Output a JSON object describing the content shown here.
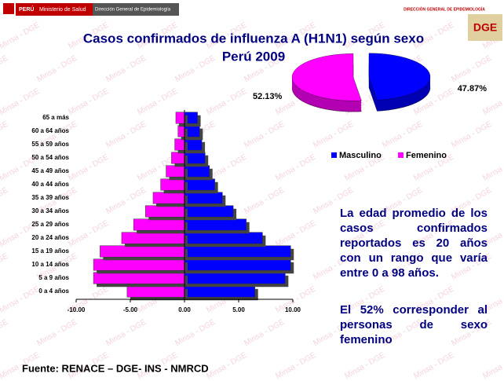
{
  "header": {
    "country": "PERÚ",
    "ministry": "Ministerio de Salud",
    "direction": "Dirección General de Epidemiología",
    "right_org": "DIRECCIÓN GENERAL DE EPIDEMIOLOGÍA",
    "right_logo": "DGE",
    "watermark": "Minsa - DGE"
  },
  "title": [
    "Casos confirmados de influenza A (H1N1) según sexo",
    "Perú 2009"
  ],
  "chart_data": [
    {
      "type": "pyramid",
      "categories": [
        "0 a 4 años",
        "5 a 9 años",
        "10 a 14 años",
        "15 a 19 años",
        "20 a 24 años",
        "25 a 29 años",
        "30 a 34 años",
        "35 a 39 años",
        "40 a 44 años",
        "45 a 49 años",
        "50 a 54 años",
        "55 a 59 años",
        "60 a 64 años",
        "65 a más"
      ],
      "series": [
        {
          "color": "#0000ff",
          "values": [
            6.5,
            9.3,
            9.8,
            9.8,
            7.2,
            5.7,
            4.5,
            3.5,
            2.8,
            2.3,
            1.9,
            1.6,
            1.4,
            1.2
          ]
        },
        {
          "color": "#ff00ff",
          "values": [
            -5.3,
            -8.4,
            -8.4,
            -7.8,
            -5.8,
            -4.7,
            -3.6,
            -2.9,
            -2.2,
            -1.7,
            -1.2,
            -0.9,
            -0.6,
            -0.8
          ]
        }
      ],
      "xlim": [
        -10,
        10
      ],
      "xticks": [
        {
          "value": -10,
          "label": "-10.00"
        },
        {
          "value": -5,
          "label": "-5.00"
        },
        {
          "value": 0,
          "label": "0.00"
        },
        {
          "value": 5,
          "label": "5.00"
        },
        {
          "value": 10,
          "label": "10.00"
        }
      ]
    },
    {
      "type": "pie",
      "categories": [
        "Masculino",
        "Femenino"
      ],
      "values": [
        47.87,
        52.13
      ],
      "value_labels": [
        "47.87%",
        "52.13%"
      ],
      "colors": [
        "#0000ff",
        "#ff00ff"
      ],
      "legend": "bottom"
    }
  ],
  "notes": [
    "La edad promedio de los casos confirmados reportados es 20 años con un rango que varía entre 0 a 98 años.",
    "El 52% corresponder al personas de sexo femenino"
  ],
  "source": "Fuente: RENACE – DGE- INS - NMRCD"
}
